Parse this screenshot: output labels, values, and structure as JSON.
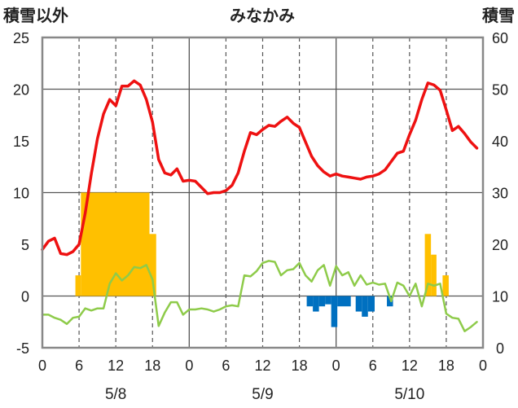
{
  "chart_data": {
    "type": "bar+line",
    "title": "みなかみ",
    "left_axis_label": "積雪以外",
    "right_axis_label": "積雪",
    "left_ylim": [
      -5,
      25
    ],
    "left_yticks": [
      -5,
      0,
      5,
      10,
      15,
      20,
      25
    ],
    "right_ylim": [
      0,
      60
    ],
    "right_yticks": [
      0,
      10,
      20,
      30,
      40,
      50,
      60
    ],
    "x_range_hours": [
      0,
      72
    ],
    "x_tick_labels": [
      "0",
      "6",
      "12",
      "18",
      "0",
      "6",
      "12",
      "18",
      "0",
      "6",
      "12",
      "18",
      "0"
    ],
    "date_labels": [
      {
        "label": "5/8",
        "hour": 12
      },
      {
        "label": "5/9",
        "hour": 36
      },
      {
        "label": "5/10",
        "hour": 60
      }
    ],
    "grid": "dashed vertical at 6-hourly marks, solid at day boundaries, solid horizontal at 0, 10, 20",
    "colors": {
      "red_line": "#ee1111",
      "green_line": "#8ecb4a",
      "orange_bar": "#ffc000",
      "blue_bar": "#0070c0",
      "frame": "#888888",
      "grid": "#555555"
    },
    "red_line_values": [
      [
        0,
        4.5
      ],
      [
        1,
        5.3
      ],
      [
        2,
        5.6
      ],
      [
        3,
        4.1
      ],
      [
        4,
        4.0
      ],
      [
        5,
        4.3
      ],
      [
        6,
        5.0
      ],
      [
        7,
        8.0
      ],
      [
        8,
        11.8
      ],
      [
        9,
        15.2
      ],
      [
        10,
        17.6
      ],
      [
        11,
        19.0
      ],
      [
        12,
        18.4
      ],
      [
        13,
        20.3
      ],
      [
        14,
        20.3
      ],
      [
        15,
        20.8
      ],
      [
        16,
        20.4
      ],
      [
        17,
        19.0
      ],
      [
        18,
        16.8
      ],
      [
        19,
        13.2
      ],
      [
        20,
        11.9
      ],
      [
        21,
        11.7
      ],
      [
        22,
        12.3
      ],
      [
        23,
        11.1
      ],
      [
        24,
        11.2
      ],
      [
        25,
        11.1
      ],
      [
        26,
        10.5
      ],
      [
        27,
        9.9
      ],
      [
        28,
        10.0
      ],
      [
        29,
        10.0
      ],
      [
        30,
        10.2
      ],
      [
        31,
        10.7
      ],
      [
        32,
        11.9
      ],
      [
        33,
        14.0
      ],
      [
        34,
        15.8
      ],
      [
        35,
        15.6
      ],
      [
        36,
        16.1
      ],
      [
        37,
        16.5
      ],
      [
        38,
        16.4
      ],
      [
        39,
        16.9
      ],
      [
        40,
        17.3
      ],
      [
        41,
        16.7
      ],
      [
        42,
        16.3
      ],
      [
        43,
        14.9
      ],
      [
        44,
        13.5
      ],
      [
        45,
        12.6
      ],
      [
        46,
        12.0
      ],
      [
        47,
        11.6
      ],
      [
        48,
        11.8
      ],
      [
        49,
        11.6
      ],
      [
        50,
        11.5
      ],
      [
        51,
        11.4
      ],
      [
        52,
        11.3
      ],
      [
        53,
        11.5
      ],
      [
        54,
        11.6
      ],
      [
        55,
        11.8
      ],
      [
        56,
        12.2
      ],
      [
        57,
        13.0
      ],
      [
        58,
        13.8
      ],
      [
        59,
        14.0
      ],
      [
        60,
        15.6
      ],
      [
        61,
        17.0
      ],
      [
        62,
        19.0
      ],
      [
        63,
        20.6
      ],
      [
        64,
        20.4
      ],
      [
        65,
        19.9
      ],
      [
        66,
        18.0
      ],
      [
        67,
        16.0
      ],
      [
        68,
        16.4
      ],
      [
        69,
        15.7
      ],
      [
        70,
        14.9
      ],
      [
        71,
        14.3
      ]
    ],
    "green_line_values": [
      [
        0,
        -1.8
      ],
      [
        1,
        -1.8
      ],
      [
        2,
        -2.1
      ],
      [
        3,
        -2.3
      ],
      [
        4,
        -2.7
      ],
      [
        5,
        -2.1
      ],
      [
        6,
        -2.0
      ],
      [
        7,
        -1.2
      ],
      [
        8,
        -1.4
      ],
      [
        9,
        -1.2
      ],
      [
        10,
        -1.2
      ],
      [
        11,
        1.2
      ],
      [
        12,
        2.2
      ],
      [
        13,
        1.5
      ],
      [
        14,
        2.0
      ],
      [
        15,
        2.8
      ],
      [
        16,
        2.7
      ],
      [
        17,
        3.0
      ],
      [
        18,
        1.6
      ],
      [
        19,
        -2.9
      ],
      [
        20,
        -1.6
      ],
      [
        21,
        -0.6
      ],
      [
        22,
        -0.6
      ],
      [
        23,
        -1.8
      ],
      [
        24,
        -1.3
      ],
      [
        25,
        -1.3
      ],
      [
        26,
        -1.2
      ],
      [
        27,
        -1.3
      ],
      [
        28,
        -1.5
      ],
      [
        29,
        -1.3
      ],
      [
        30,
        -1.0
      ],
      [
        31,
        -0.9
      ],
      [
        32,
        -1.0
      ],
      [
        33,
        2.0
      ],
      [
        34,
        1.9
      ],
      [
        35,
        2.4
      ],
      [
        36,
        3.2
      ],
      [
        37,
        3.4
      ],
      [
        38,
        3.3
      ],
      [
        39,
        2.0
      ],
      [
        40,
        2.5
      ],
      [
        41,
        2.6
      ],
      [
        42,
        3.2
      ],
      [
        43,
        2.0
      ],
      [
        44,
        1.4
      ],
      [
        45,
        2.5
      ],
      [
        46,
        3.0
      ],
      [
        47,
        1.0
      ],
      [
        48,
        2.9
      ],
      [
        49,
        2.0
      ],
      [
        50,
        2.3
      ],
      [
        51,
        1.0
      ],
      [
        52,
        2.0
      ],
      [
        53,
        1.1
      ],
      [
        54,
        1.3
      ],
      [
        55,
        1.1
      ],
      [
        56,
        1.2
      ],
      [
        57,
        -0.5
      ],
      [
        58,
        1.3
      ],
      [
        59,
        1.0
      ],
      [
        60,
        0.0
      ],
      [
        61,
        1.2
      ],
      [
        62,
        -1.0
      ],
      [
        63,
        1.2
      ],
      [
        64,
        1.0
      ],
      [
        65,
        1.2
      ],
      [
        66,
        -1.7
      ],
      [
        67,
        -2.1
      ],
      [
        68,
        -2.2
      ],
      [
        69,
        -3.4
      ],
      [
        70,
        -3.0
      ],
      [
        71,
        -2.5
      ]
    ],
    "orange_bars": [
      {
        "start": 5.4,
        "end": 6.3,
        "value": 2.0
      },
      {
        "start": 6.3,
        "end": 17.5,
        "value": 10.0
      },
      {
        "start": 17.5,
        "end": 18.6,
        "value": 6.0
      },
      {
        "start": 62.5,
        "end": 63.5,
        "value": 6.0
      },
      {
        "start": 63.5,
        "end": 64.4,
        "value": 4.0
      },
      {
        "start": 65.4,
        "end": 66.4,
        "value": 2.0
      }
    ],
    "blue_bars": [
      {
        "start": 43.2,
        "end": 44.2,
        "value": -1.0
      },
      {
        "start": 44.2,
        "end": 45.2,
        "value": -1.5
      },
      {
        "start": 45.2,
        "end": 46.2,
        "value": -1.0
      },
      {
        "start": 46.2,
        "end": 47.2,
        "value": -0.8
      },
      {
        "start": 47.2,
        "end": 48.2,
        "value": -3.0
      },
      {
        "start": 48.2,
        "end": 50.4,
        "value": -1.0
      },
      {
        "start": 51.2,
        "end": 52.2,
        "value": -1.5
      },
      {
        "start": 52.2,
        "end": 53.2,
        "value": -2.0
      },
      {
        "start": 53.2,
        "end": 54.3,
        "value": -1.5
      },
      {
        "start": 56.3,
        "end": 57.3,
        "value": -1.0
      }
    ]
  }
}
